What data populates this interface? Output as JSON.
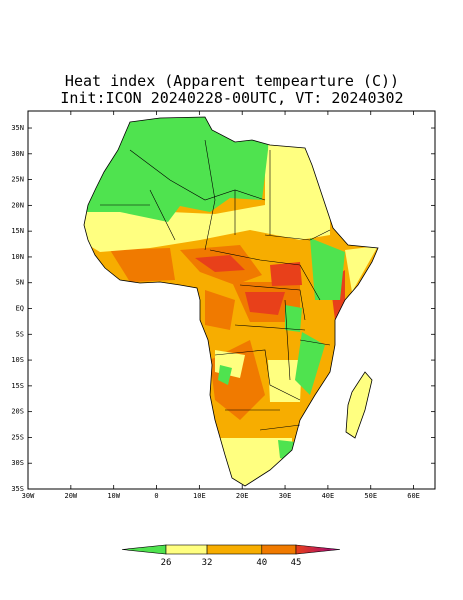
{
  "title": "Heat index (Apparent tempearture (C))",
  "subtitle": "Init:ICON 20240228-00UTC, VT: 20240302",
  "map": {
    "lonlim": [
      -30,
      65
    ],
    "latlim": [
      -35,
      38.3
    ],
    "lat_ticks": [
      {
        "value": 35,
        "label": "35N"
      },
      {
        "value": 30,
        "label": "30N"
      },
      {
        "value": 25,
        "label": "25N"
      },
      {
        "value": 20,
        "label": "20N"
      },
      {
        "value": 15,
        "label": "15N"
      },
      {
        "value": 10,
        "label": "10N"
      },
      {
        "value": 5,
        "label": "5N"
      },
      {
        "value": 0,
        "label": "EQ"
      },
      {
        "value": -5,
        "label": "5S"
      },
      {
        "value": -10,
        "label": "10S"
      },
      {
        "value": -15,
        "label": "15S"
      },
      {
        "value": -20,
        "label": "20S"
      },
      {
        "value": -25,
        "label": "25S"
      },
      {
        "value": -30,
        "label": "30S"
      },
      {
        "value": -35,
        "label": "35S"
      }
    ],
    "lon_ticks": [
      {
        "value": -30,
        "label": "30W"
      },
      {
        "value": -20,
        "label": "20W"
      },
      {
        "value": -10,
        "label": "10W"
      },
      0,
      {
        "value": 10,
        "label": "10E"
      },
      {
        "value": 20,
        "label": "20E"
      },
      {
        "value": 30,
        "label": "30E"
      },
      {
        "value": 40,
        "label": "40E"
      },
      {
        "value": 50,
        "label": "50E"
      },
      {
        "value": 60,
        "label": "60E"
      }
    ],
    "colorbar": {
      "levels": [
        26,
        32,
        40,
        45
      ],
      "colors": [
        "#4fe34f",
        "#ffff80",
        "#f7ad00",
        "#f07a00",
        "#e8401a"
      ],
      "extend_color": "#9c0080"
    }
  }
}
